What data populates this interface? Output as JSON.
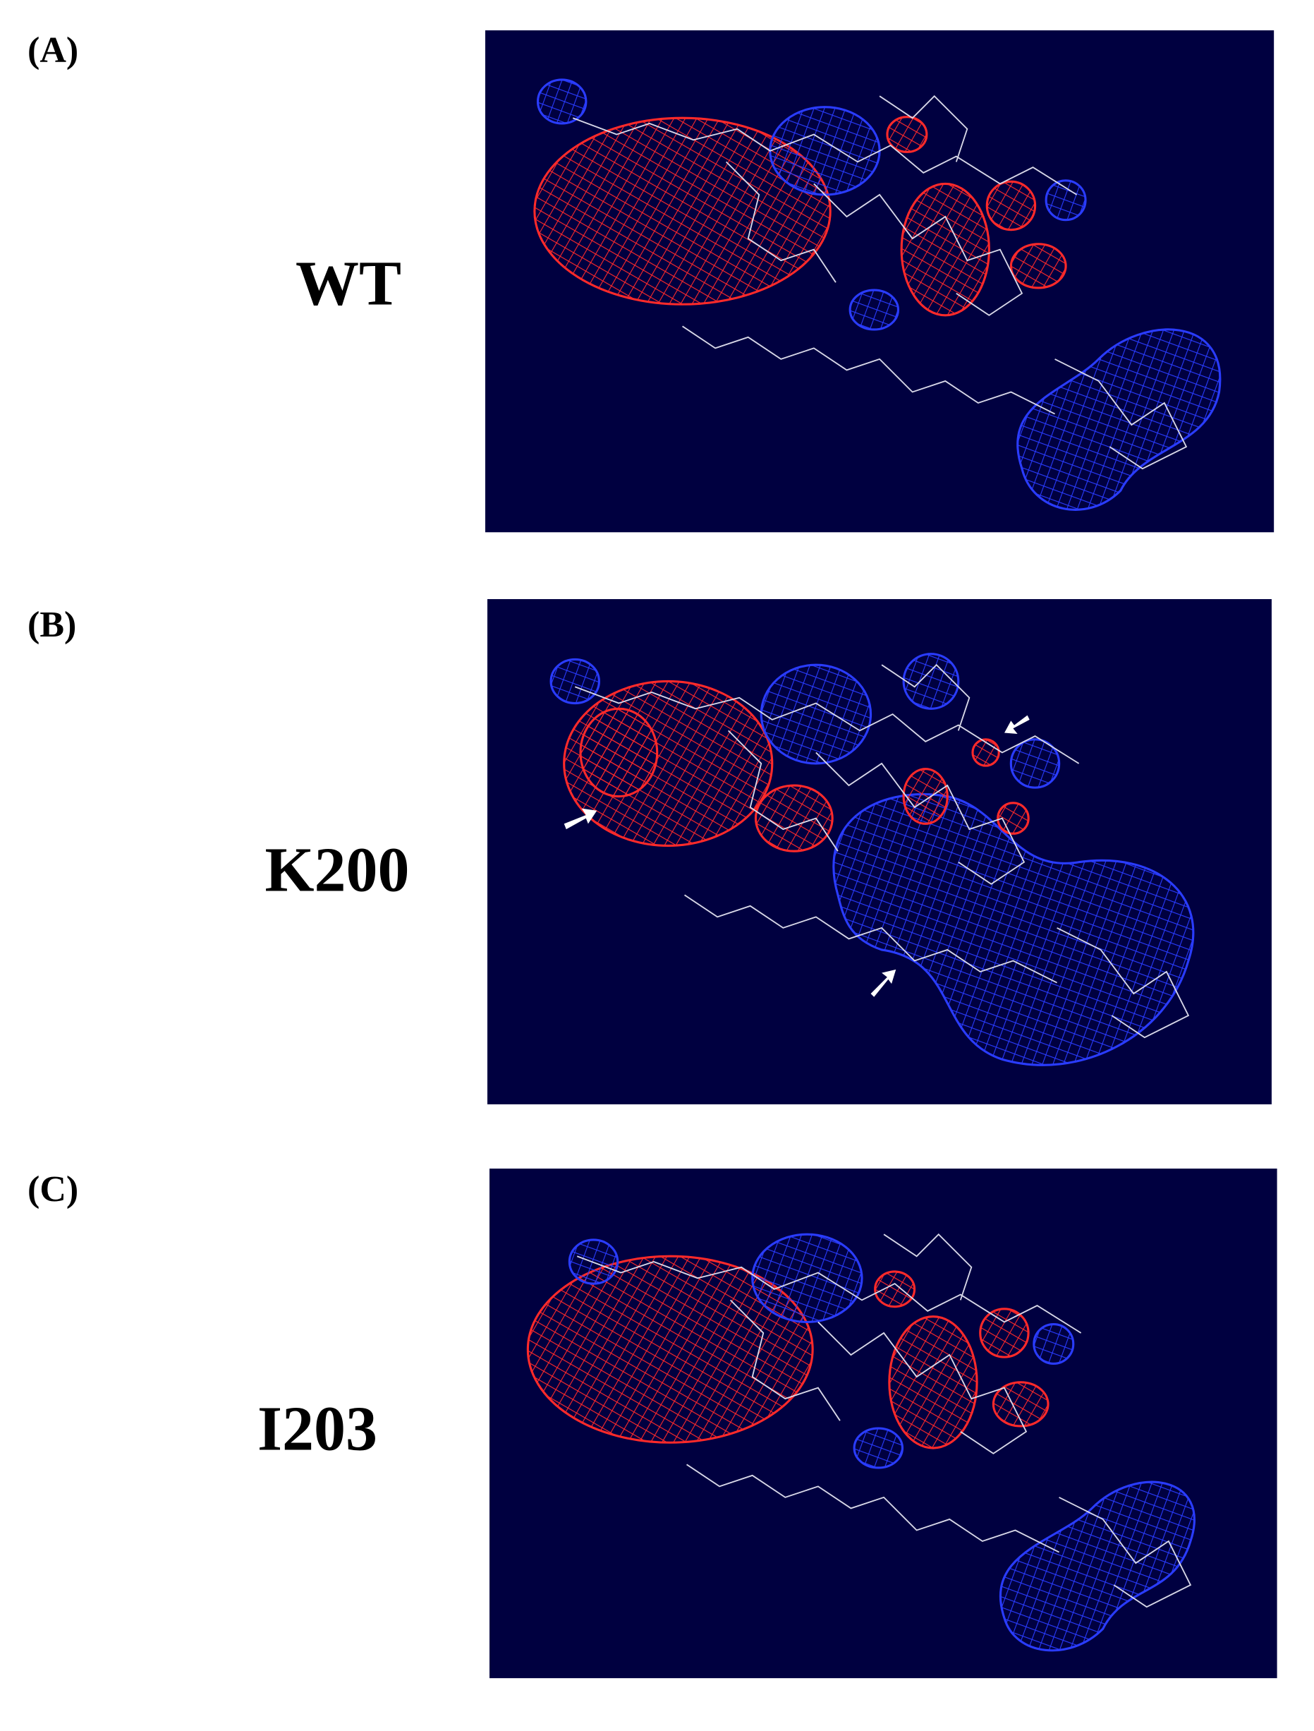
{
  "panels": [
    {
      "label": "(A)",
      "name": "WT"
    },
    {
      "label": "(B)",
      "name": "K200"
    },
    {
      "label": "(C)",
      "name": "I203"
    }
  ]
}
